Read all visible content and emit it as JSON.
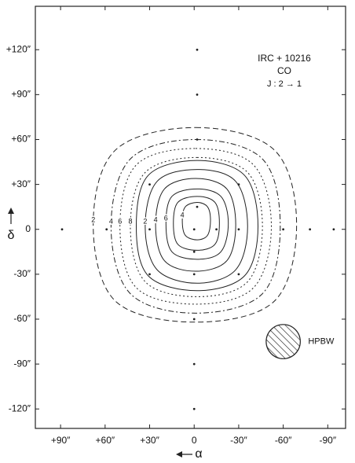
{
  "chart_data": {
    "type": "contour",
    "annotations": [
      "IRC + 10216",
      "CO",
      "J : 2 → 1"
    ],
    "xlabel": "α",
    "ylabel": "δ",
    "xlim": [
      107,
      -102
    ],
    "ylim": [
      -133,
      149
    ],
    "xticks": [
      {
        "value": 90,
        "label": "+90″"
      },
      {
        "value": 60,
        "label": "+60″"
      },
      {
        "value": 30,
        "label": "+30″"
      },
      0,
      {
        "value": -30,
        "label": "-30″"
      },
      {
        "value": -60,
        "label": "-60″"
      },
      {
        "value": -90,
        "label": "-90″"
      }
    ],
    "yticks": [
      {
        "value": 120,
        "label": "+120″"
      },
      {
        "value": 90,
        "label": "+90″"
      },
      {
        "value": 60,
        "label": "+60″"
      },
      {
        "value": 30,
        "label": "+30″"
      },
      0,
      {
        "value": -30,
        "label": "-30″"
      },
      {
        "value": -60,
        "label": "-60″"
      },
      {
        "value": -90,
        "label": "-90″"
      },
      {
        "value": -120,
        "label": "-120″"
      }
    ],
    "color": "#222",
    "contours": [
      {
        "label": "2",
        "line_style": "dashed",
        "x": [
          -1,
          -54,
          -69,
          -54,
          -1,
          53,
          68,
          53
        ],
        "y": [
          68,
          53,
          3,
          -48,
          -62,
          -48,
          3,
          53
        ]
      },
      {
        "label": "4",
        "line_style": "dashdot",
        "x": [
          -1,
          -46,
          -58,
          -46,
          -1,
          43,
          56,
          43
        ],
        "y": [
          60,
          47,
          2,
          -43,
          -56,
          -43,
          2,
          47
        ]
      },
      {
        "label": "6",
        "line_style": "dotted",
        "x": [
          -1,
          -40,
          -52,
          -40,
          -1,
          39,
          50,
          39
        ],
        "y": [
          54,
          43,
          2,
          -39,
          -50,
          -39,
          2,
          43
        ]
      },
      {
        "label": "8",
        "line_style": "dotted",
        "x": [
          -2,
          -36,
          -46,
          -36,
          -2,
          33,
          43,
          33
        ],
        "y": [
          48,
          38,
          2,
          -35,
          -45,
          -35,
          2,
          38
        ]
      },
      {
        "line_style": "solid",
        "x": [
          -2,
          -34,
          -43,
          -34,
          -2,
          31,
          39,
          31
        ],
        "y": [
          46,
          36,
          2,
          -31,
          -41,
          -31,
          2,
          36
        ]
      },
      {
        "label": "2",
        "line_style": "solid",
        "x": [
          -2,
          -28,
          -36,
          -28,
          -2,
          25,
          33,
          25
        ],
        "y": [
          40,
          32,
          2,
          -27,
          -36,
          -27,
          2,
          32
        ]
      },
      {
        "label": "4",
        "line_style": "solid",
        "x": [
          -1,
          -22,
          -28,
          -22,
          -1,
          20,
          26,
          20
        ],
        "y": [
          34,
          27,
          3,
          -21,
          -28,
          -21,
          3,
          27
        ]
      },
      {
        "label": "6",
        "line_style": "solid",
        "x": [
          -2,
          -18,
          -23,
          -18,
          -2,
          15,
          19,
          15
        ],
        "y": [
          27,
          22,
          4,
          -15,
          -20,
          -15,
          4,
          22
        ]
      },
      {
        "line_style": "solid",
        "x": [
          -2,
          -14,
          -17,
          -14,
          -2,
          11,
          14,
          11
        ],
        "y": [
          22,
          18,
          4,
          -10,
          -14,
          -10,
          4,
          18
        ]
      },
      {
        "label": "4",
        "line_style": "solid",
        "x": [
          -2,
          -9,
          -11,
          -9,
          -2,
          6,
          8,
          6
        ],
        "y": [
          18,
          15,
          6,
          -4,
          -7,
          -4,
          6,
          15
        ]
      }
    ],
    "points": {
      "x": [
        89,
        59,
        30,
        0,
        -15,
        -30,
        -60,
        -78,
        -94,
        -2,
        -2,
        -2,
        -2,
        0,
        0,
        0,
        0,
        0,
        30,
        -30,
        30,
        -30
      ],
      "y": [
        0,
        0,
        0,
        0,
        0,
        0,
        0,
        0,
        0,
        120,
        90,
        60,
        15,
        -15,
        -30,
        -60,
        -90,
        -120,
        30,
        30,
        -30,
        -30
      ]
    },
    "beam": {
      "label": "HPBW",
      "x": -60,
      "y": -75,
      "diameter": 23
    }
  }
}
